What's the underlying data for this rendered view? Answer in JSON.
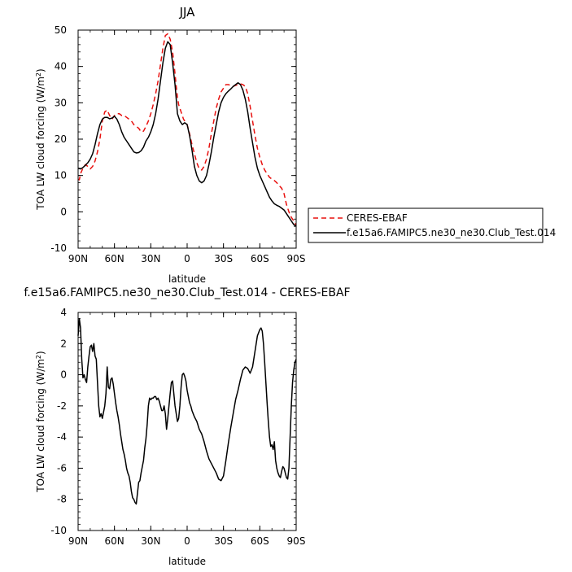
{
  "chart_data": [
    {
      "type": "line",
      "title": "JJA",
      "xlabel": "latitude",
      "ylabel": "TOA LW cloud forcing (W/m²)",
      "ylabel_main": "TOA LW cloud forcing (W/m",
      "ylabel_sup": "2",
      "ylabel_end": ")",
      "xlim": [
        90,
        -90
      ],
      "ylim": [
        -10,
        50
      ],
      "xticks": [
        90,
        60,
        30,
        0,
        -30,
        -60,
        -90
      ],
      "xtick_labels": [
        "90N",
        "60N",
        "30N",
        "0",
        "30S",
        "60S",
        "90S"
      ],
      "yticks": [
        -10,
        0,
        10,
        20,
        30,
        40,
        50
      ],
      "ytick_labels": [
        "-10",
        "0",
        "10",
        "20",
        "30",
        "40",
        "50"
      ],
      "legend_position": "right",
      "series": [
        {
          "name": "CERES-EBAF",
          "color": "#e8110f",
          "dash": "dashed",
          "x": [
            90,
            89,
            88,
            86,
            84,
            82,
            80,
            78,
            76,
            74,
            72,
            70,
            68,
            66,
            64,
            62,
            60,
            58,
            56,
            54,
            52,
            50,
            48,
            46,
            44,
            42,
            40,
            38,
            36,
            34,
            32,
            30,
            28,
            26,
            24,
            22,
            20,
            18,
            16,
            14,
            12,
            10,
            9,
            8,
            7,
            6,
            5,
            4,
            3,
            2,
            1,
            0,
            -2,
            -4,
            -6,
            -8,
            -10,
            -12,
            -14,
            -16,
            -18,
            -20,
            -22,
            -24,
            -26,
            -28,
            -30,
            -32,
            -34,
            -36,
            -38,
            -40,
            -42,
            -44,
            -46,
            -48,
            -50,
            -52,
            -54,
            -56,
            -58,
            -60,
            -62,
            -64,
            -66,
            -68,
            -70,
            -72,
            -74,
            -76,
            -78,
            -80,
            -82,
            -84,
            -86,
            -88,
            -90
          ],
          "y": [
            9.0,
            8.8,
            10.5,
            12.0,
            13.0,
            12.5,
            11.8,
            12.5,
            14.0,
            16.5,
            20.0,
            25.0,
            27.5,
            28.0,
            26.5,
            25.5,
            26.5,
            27.0,
            27.0,
            26.5,
            26.5,
            26.0,
            25.5,
            25.0,
            24.0,
            23.5,
            23.0,
            22.0,
            22.2,
            23.5,
            25.0,
            27.0,
            29.5,
            32.5,
            36.0,
            40.5,
            45.0,
            48.5,
            49.0,
            47.5,
            44.0,
            38.0,
            34.5,
            31.5,
            29.5,
            28.5,
            27.5,
            26.5,
            25.5,
            25.0,
            24.5,
            24.0,
            21.5,
            18.5,
            16.0,
            13.5,
            11.8,
            11.5,
            12.5,
            14.5,
            17.5,
            21.5,
            25.0,
            28.5,
            31.0,
            33.0,
            34.0,
            35.0,
            35.0,
            34.8,
            34.5,
            34.8,
            35.0,
            35.2,
            35.0,
            34.5,
            32.5,
            29.0,
            25.0,
            21.0,
            17.5,
            15.0,
            13.0,
            11.5,
            10.5,
            9.5,
            9.0,
            8.6,
            8.0,
            7.2,
            6.5,
            5.0,
            2.0,
            0.0,
            -1.5,
            -2.5,
            -3.8
          ]
        },
        {
          "name": "f.e15a6.FAMIPC5.ne30_ne30.Club_Test.014",
          "color": "#000000",
          "dash": "solid",
          "x": [
            90,
            88,
            86,
            84,
            82,
            80,
            78,
            76,
            74,
            72,
            70,
            68,
            66,
            64,
            62,
            60,
            58,
            56,
            54,
            52,
            50,
            48,
            46,
            44,
            42,
            40,
            38,
            36,
            34,
            32,
            30,
            28,
            26,
            24,
            22,
            20,
            18,
            16,
            14,
            12,
            10,
            8,
            6,
            4,
            2,
            0,
            -2,
            -4,
            -6,
            -8,
            -10,
            -12,
            -14,
            -16,
            -18,
            -20,
            -22,
            -24,
            -26,
            -28,
            -30,
            -32,
            -34,
            -36,
            -38,
            -40,
            -42,
            -44,
            -46,
            -48,
            -50,
            -52,
            -54,
            -56,
            -58,
            -60,
            -62,
            -64,
            -66,
            -68,
            -70,
            -72,
            -74,
            -76,
            -78,
            -80,
            -82,
            -84,
            -86,
            -88,
            -90
          ],
          "y": [
            12.0,
            11.8,
            12.2,
            12.8,
            13.5,
            14.5,
            16.0,
            18.5,
            21.5,
            24.0,
            25.5,
            26.0,
            26.0,
            25.6,
            25.8,
            26.3,
            25.5,
            24.0,
            22.0,
            20.5,
            19.5,
            18.5,
            17.5,
            16.5,
            16.2,
            16.3,
            16.8,
            17.8,
            19.5,
            20.5,
            22.0,
            24.0,
            27.0,
            31.0,
            36.0,
            41.0,
            45.0,
            46.8,
            46.0,
            41.0,
            35.0,
            27.0,
            25.0,
            24.0,
            24.5,
            24.0,
            21.0,
            17.0,
            12.5,
            10.0,
            8.5,
            8.0,
            8.5,
            10.0,
            13.0,
            16.5,
            20.5,
            24.0,
            27.5,
            30.0,
            31.5,
            32.5,
            33.2,
            33.8,
            34.5,
            35.0,
            35.5,
            35.0,
            33.5,
            31.0,
            27.5,
            23.0,
            19.0,
            15.0,
            12.0,
            10.0,
            8.5,
            7.0,
            5.5,
            4.0,
            3.0,
            2.2,
            1.8,
            1.5,
            1.0,
            0.5,
            -0.5,
            -1.5,
            -2.5,
            -3.5,
            -4.0
          ]
        }
      ]
    },
    {
      "type": "line",
      "title": "f.e15a6.FAMIPC5.ne30_ne30.Club_Test.014 - CERES-EBAF",
      "xlabel": "latitude",
      "ylabel": "TOA LW cloud forcing (W/m²)",
      "ylabel_main": "TOA LW cloud forcing (W/m",
      "ylabel_sup": "2",
      "ylabel_end": ")",
      "xlim": [
        90,
        -90
      ],
      "ylim": [
        -10,
        4
      ],
      "xticks": [
        90,
        60,
        30,
        0,
        -30,
        -60,
        -90
      ],
      "xtick_labels": [
        "90N",
        "60N",
        "30N",
        "0",
        "30S",
        "60S",
        "90S"
      ],
      "yticks": [
        -10,
        -8,
        -6,
        -4,
        -2,
        0,
        2,
        4
      ],
      "ytick_labels": [
        "-10",
        "-8",
        "-6",
        "-4",
        "-2",
        "0",
        "2",
        "4"
      ],
      "series": [
        {
          "name": "",
          "color": "#000000",
          "dash": "solid",
          "x": [
            90,
            89,
            88,
            87,
            86,
            85,
            84,
            83,
            82,
            81,
            80,
            79,
            78,
            77,
            76,
            75,
            74,
            73,
            72,
            71,
            70,
            69,
            68,
            67,
            66,
            65,
            64,
            63,
            62,
            61,
            60,
            59,
            58,
            57,
            56,
            55,
            54,
            53,
            52,
            51,
            50,
            49,
            48,
            47,
            46,
            45,
            44,
            43,
            42,
            41,
            40,
            39,
            38,
            37,
            36,
            35,
            34,
            33,
            32,
            31,
            30,
            29,
            28,
            27,
            26,
            25,
            24,
            23,
            22,
            21,
            20,
            19,
            18,
            17,
            16,
            15,
            14,
            13,
            12,
            11,
            10,
            9,
            8,
            7,
            6,
            5,
            4,
            3,
            2,
            1,
            0,
            -1,
            -2,
            -3,
            -4,
            -5,
            -6,
            -8,
            -10,
            -12,
            -14,
            -16,
            -18,
            -20,
            -22,
            -24,
            -26,
            -28,
            -30,
            -32,
            -34,
            -36,
            -38,
            -40,
            -42,
            -44,
            -46,
            -48,
            -50,
            -52,
            -54,
            -56,
            -58,
            -60,
            -61,
            -62,
            -63,
            -64,
            -65,
            -66,
            -67,
            -68,
            -69,
            -70,
            -71,
            -72,
            -73,
            -74,
            -75,
            -76,
            -77,
            -78,
            -79,
            -80,
            -81,
            -82,
            -83,
            -84,
            -85,
            -86,
            -87,
            -88,
            -89,
            -90
          ],
          "y": [
            2.5,
            3.6,
            3.0,
            1.0,
            -0.2,
            0.0,
            -0.3,
            -0.5,
            0.5,
            1.2,
            1.8,
            1.9,
            1.5,
            2.0,
            1.2,
            1.0,
            -0.5,
            -2.0,
            -2.7,
            -2.5,
            -2.8,
            -2.4,
            -2.0,
            -1.2,
            0.5,
            -0.8,
            -0.9,
            -0.3,
            -0.2,
            -0.6,
            -1.2,
            -1.8,
            -2.3,
            -2.7,
            -3.2,
            -3.8,
            -4.3,
            -4.8,
            -5.1,
            -5.5,
            -6.0,
            -6.3,
            -6.5,
            -6.9,
            -7.5,
            -7.9,
            -8.0,
            -8.2,
            -8.3,
            -7.6,
            -6.9,
            -6.8,
            -6.3,
            -5.9,
            -5.5,
            -4.7,
            -4.1,
            -3.2,
            -2.0,
            -1.5,
            -1.6,
            -1.5,
            -1.5,
            -1.4,
            -1.4,
            -1.6,
            -1.5,
            -1.7,
            -2.0,
            -2.3,
            -2.3,
            -2.0,
            -2.5,
            -3.5,
            -2.8,
            -2.0,
            -1.2,
            -0.5,
            -0.4,
            -1.2,
            -2.0,
            -2.5,
            -3.0,
            -2.8,
            -2.0,
            -0.8,
            0.0,
            0.1,
            -0.1,
            -0.4,
            -1.0,
            -1.4,
            -1.8,
            -2.0,
            -2.3,
            -2.5,
            -2.7,
            -3.0,
            -3.5,
            -3.8,
            -4.3,
            -4.9,
            -5.4,
            -5.7,
            -6.0,
            -6.3,
            -6.7,
            -6.8,
            -6.5,
            -5.5,
            -4.4,
            -3.4,
            -2.5,
            -1.6,
            -1.0,
            -0.3,
            0.3,
            0.5,
            0.4,
            0.1,
            0.5,
            1.5,
            2.5,
            2.9,
            3.0,
            2.8,
            2.0,
            0.8,
            -0.5,
            -1.8,
            -3.0,
            -4.0,
            -4.6,
            -4.5,
            -4.8,
            -4.3,
            -5.5,
            -6.0,
            -6.3,
            -6.5,
            -6.6,
            -6.2,
            -5.9,
            -6.0,
            -6.3,
            -6.6,
            -6.7,
            -6.0,
            -4.0,
            -2.0,
            -0.5,
            0.3,
            0.8,
            1.0
          ]
        }
      ]
    }
  ]
}
